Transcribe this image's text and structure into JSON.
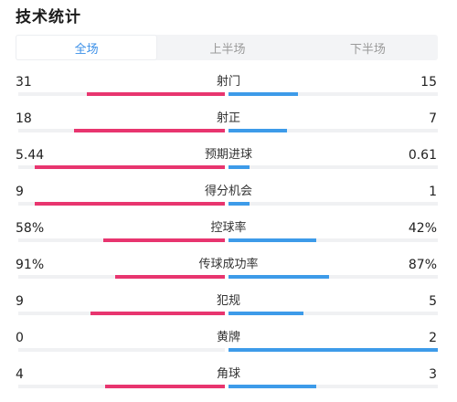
{
  "header": {
    "title": "技术统计"
  },
  "tabs": [
    {
      "label": "全场",
      "active": true
    },
    {
      "label": "上半场",
      "active": false
    },
    {
      "label": "下半场",
      "active": false
    }
  ],
  "colors": {
    "home": "#e8356f",
    "away": "#3d9be9",
    "active_tab": "#3a8fe8"
  },
  "stats": [
    {
      "label": "射门",
      "home": "31",
      "away": "15",
      "home_share": 0.67,
      "away_share": 0.33
    },
    {
      "label": "射正",
      "home": "18",
      "away": "7",
      "home_share": 0.73,
      "away_share": 0.28
    },
    {
      "label": "预期进球",
      "home": "5.44",
      "away": "0.61",
      "home_share": 0.92,
      "away_share": 0.1
    },
    {
      "label": "得分机会",
      "home": "9",
      "away": "1",
      "home_share": 0.92,
      "away_share": 0.1
    },
    {
      "label": "控球率",
      "home": "58%",
      "away": "42%",
      "home_share": 0.59,
      "away_share": 0.42
    },
    {
      "label": "传球成功率",
      "home": "91%",
      "away": "87%",
      "home_share": 0.53,
      "away_share": 0.48
    },
    {
      "label": "犯规",
      "home": "9",
      "away": "5",
      "home_share": 0.65,
      "away_share": 0.36
    },
    {
      "label": "黄牌",
      "home": "0",
      "away": "2",
      "home_share": 0.0,
      "away_share": 1.0
    },
    {
      "label": "角球",
      "home": "4",
      "away": "3",
      "home_share": 0.58,
      "away_share": 0.42
    }
  ]
}
